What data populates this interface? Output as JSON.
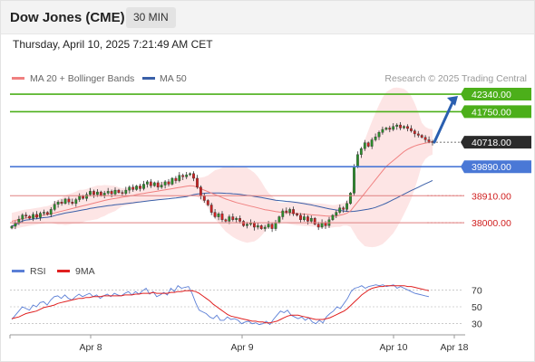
{
  "header": {
    "title": "Dow Jones (CME)",
    "timeframe": "30 MIN"
  },
  "datetime": "Thursday, April 10, 2025 7:21:49 AM CET",
  "watermark": "Research © 2025 Trading Central",
  "colors": {
    "up": "#2a8f2a",
    "down": "#d02020",
    "ma20": "#f08080",
    "bollinger_fill": "#fde0e0",
    "ma50": "#3a5fa8",
    "support_resistance_green": "#4caf1a",
    "pivot_blue": "#4a78d6",
    "support_red": "#e08080",
    "rsi": "#5b7fd6",
    "rsi_ma": "#e02020",
    "arrow": "#2a5fb0"
  },
  "chart_data": [
    {
      "type": "candlestick",
      "legend": [
        {
          "name": "MA 20 + Bollinger Bands",
          "color": "#f08080"
        },
        {
          "name": "MA 50",
          "color": "#3a5fa8"
        }
      ],
      "x_ticks": [
        "Apr 8",
        "Apr 9",
        "Apr 10",
        "Apr 18"
      ],
      "ylim": [
        37300,
        42800
      ],
      "levels": [
        {
          "value": 42340.0,
          "label": "42340.00",
          "style": "resistance"
        },
        {
          "value": 41750.0,
          "label": "41750.00",
          "style": "resistance"
        },
        {
          "value": 40718.0,
          "label": "40718.00",
          "style": "last"
        },
        {
          "value": 39890.0,
          "label": "39890.00",
          "style": "pivot"
        },
        {
          "value": 38910.0,
          "label": "38910.00",
          "style": "support"
        },
        {
          "value": 38000.0,
          "label": "38000.00",
          "style": "support"
        }
      ],
      "projection": {
        "from": 40718,
        "to": 42340
      },
      "series": [
        {
          "name": "Price",
          "values": [
            37880,
            37980,
            38120,
            38260,
            38220,
            38150,
            38280,
            38180,
            38320,
            38350,
            38280,
            38450,
            38620,
            38700,
            38650,
            38800,
            38700,
            38650,
            38780,
            38900,
            38820,
            38950,
            39060,
            38950,
            39040,
            38920,
            39000,
            39060,
            38970,
            39100,
            39020,
            38990,
            39100,
            39200,
            39120,
            39240,
            39150,
            39300,
            39380,
            39250,
            39350,
            39200,
            39270,
            39380,
            39300,
            39500,
            39420,
            39600,
            39550,
            39620,
            39660,
            39500,
            39200,
            38900,
            38750,
            38600,
            38350,
            38200,
            38300,
            38100,
            38050,
            38200,
            38100,
            38150,
            38050,
            37900,
            37950,
            38000,
            37850,
            37900,
            37800,
            37850,
            37950,
            37800,
            38000,
            38200,
            38400,
            38350,
            38450,
            38300,
            38250,
            38100,
            38200,
            38050,
            38150,
            37950,
            37850,
            38000,
            37900,
            38100,
            38250,
            38350,
            38500,
            38450,
            38650,
            39000,
            39900,
            40300,
            40500,
            40700,
            40580,
            40800,
            40900,
            41050,
            41150,
            41200,
            41150,
            41250,
            41300,
            41200,
            41250,
            41180,
            41100,
            41000,
            40950,
            40880,
            40800,
            40740,
            40718
          ]
        },
        {
          "name": "MA 20",
          "values": [
            38050,
            38080,
            38110,
            38140,
            38160,
            38180,
            38200,
            38220,
            38240,
            38260,
            38280,
            38300,
            38330,
            38360,
            38390,
            38420,
            38450,
            38480,
            38510,
            38540,
            38570,
            38600,
            38630,
            38660,
            38690,
            38720,
            38750,
            38780,
            38800,
            38820,
            38840,
            38860,
            38880,
            38900,
            38920,
            38950,
            38970,
            38990,
            39010,
            39030,
            39050,
            39070,
            39090,
            39110,
            39130,
            39150,
            39170,
            39190,
            39210,
            39230,
            39250,
            39240,
            39200,
            39150,
            39100,
            39050,
            39000,
            38950,
            38900,
            38850,
            38800,
            38760,
            38720,
            38680,
            38650,
            38620,
            38590,
            38560,
            38530,
            38500,
            38470,
            38440,
            38420,
            38400,
            38380,
            38360,
            38350,
            38340,
            38330,
            38320,
            38310,
            38300,
            38290,
            38280,
            38270,
            38260,
            38250,
            38240,
            38230,
            38220,
            38220,
            38230,
            38250,
            38280,
            38320,
            38400,
            38550,
            38700,
            38850,
            39000,
            39150,
            39300,
            39450,
            39600,
            39750,
            39900,
            40000,
            40100,
            40200,
            40300,
            40400,
            40480,
            40540,
            40590,
            40630,
            40660,
            40690,
            40710,
            40730
          ]
        }
      ]
    },
    {
      "type": "line",
      "legend": [
        {
          "name": "RSI",
          "color": "#5b7fd6"
        },
        {
          "name": "9MA",
          "color": "#e02020"
        }
      ],
      "ylim": [
        20,
        80
      ],
      "y_ticks": [
        70,
        50,
        30
      ],
      "series": [
        {
          "name": "RSI",
          "values": [
            35,
            40,
            45,
            50,
            48,
            46,
            52,
            50,
            55,
            56,
            52,
            58,
            62,
            63,
            60,
            64,
            60,
            58,
            62,
            65,
            62,
            64,
            66,
            62,
            64,
            60,
            63,
            65,
            62,
            66,
            64,
            63,
            66,
            68,
            64,
            68,
            65,
            69,
            72,
            65,
            68,
            62,
            64,
            67,
            64,
            72,
            68,
            75,
            72,
            73,
            74,
            66,
            55,
            46,
            44,
            42,
            38,
            36,
            40,
            34,
            34,
            38,
            35,
            36,
            34,
            30,
            32,
            33,
            30,
            31,
            29,
            30,
            33,
            29,
            35,
            40,
            45,
            43,
            46,
            40,
            38,
            36,
            38,
            34,
            37,
            32,
            30,
            34,
            31,
            38,
            42,
            45,
            50,
            48,
            54,
            60,
            68,
            72,
            73,
            75,
            72,
            74,
            75,
            76,
            75,
            76,
            74,
            75,
            76,
            72,
            74,
            72,
            70,
            68,
            66,
            65,
            64,
            63,
            62
          ]
        },
        {
          "name": "9MA",
          "values": [
            36,
            37,
            38,
            40,
            42,
            43,
            44,
            45,
            47,
            49,
            50,
            51,
            52,
            54,
            55,
            56,
            57,
            58,
            59,
            60,
            60,
            61,
            61,
            62,
            62,
            62,
            63,
            63,
            63,
            63,
            63,
            63,
            64,
            64,
            64,
            65,
            65,
            66,
            66,
            66,
            67,
            66,
            66,
            66,
            66,
            67,
            67,
            68,
            68,
            69,
            69,
            69,
            68,
            66,
            63,
            60,
            57,
            53,
            50,
            47,
            44,
            41,
            39,
            38,
            37,
            36,
            35,
            34,
            33,
            33,
            32,
            32,
            31,
            31,
            32,
            33,
            35,
            37,
            39,
            40,
            40,
            40,
            39,
            38,
            37,
            36,
            35,
            35,
            35,
            36,
            37,
            39,
            41,
            43,
            45,
            48,
            52,
            56,
            60,
            64,
            67,
            70,
            72,
            73,
            74,
            74,
            75,
            75,
            75,
            75,
            75,
            75,
            74,
            74,
            73,
            72,
            71,
            70,
            69
          ]
        }
      ]
    }
  ]
}
